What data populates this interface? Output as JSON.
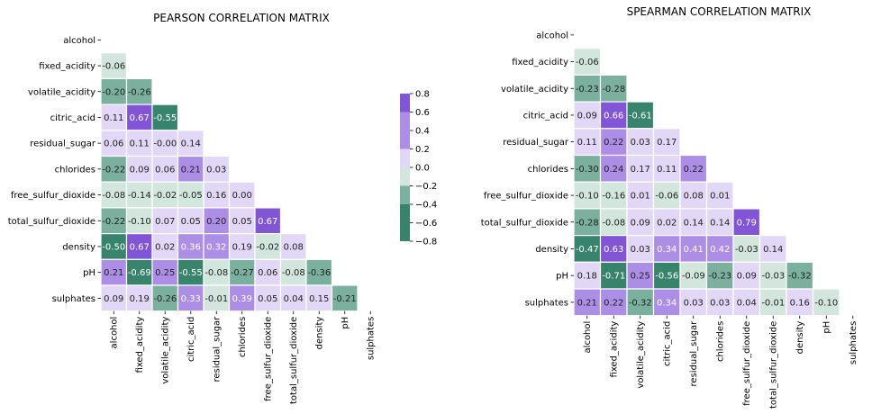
{
  "palette": {
    "neg_strong": "#38836b",
    "neg_mid": "#7ab09d",
    "neg_light": "#d2e6de",
    "pos_light": "#e2d7f6",
    "pos_mid": "#ad8ee7",
    "pos_strong": "#8155d6",
    "grid_line": "#ffffff",
    "text_dark": "#222222",
    "text_light": "#ffffff"
  },
  "colorbar": {
    "ticks": [
      "0.8",
      "0.6",
      "0.4",
      "0.2",
      "0.0",
      "−0.2",
      "−0.4",
      "−0.6",
      "−0.8"
    ],
    "range": [
      -0.8,
      0.8
    ]
  },
  "chart_data": [
    {
      "type": "heatmap",
      "title": "PEARSON CORRELATION MATRIX",
      "labels": [
        "alcohol",
        "fixed_acidity",
        "volatile_acidity",
        "citric_acid",
        "residual_sugar",
        "chlorides",
        "free_sulfur_dioxide",
        "total_sulfur_dioxide",
        "density",
        "pH",
        "sulphates"
      ],
      "values": [
        [],
        [
          "-0.06"
        ],
        [
          "-0.20",
          "-0.26"
        ],
        [
          "0.11",
          "0.67",
          "-0.55"
        ],
        [
          "0.06",
          "0.11",
          "-0.00",
          "0.14"
        ],
        [
          "-0.22",
          "0.09",
          "0.06",
          "0.21",
          "0.03"
        ],
        [
          "-0.08",
          "-0.14",
          "-0.02",
          "-0.05",
          "0.16",
          "0.00"
        ],
        [
          "-0.22",
          "-0.10",
          "0.07",
          "0.05",
          "0.20",
          "0.05",
          "0.67"
        ],
        [
          "-0.50",
          "0.67",
          "0.02",
          "0.36",
          "0.32",
          "0.19",
          "-0.02",
          "0.08"
        ],
        [
          "0.21",
          "-0.69",
          "0.25",
          "-0.55",
          "-0.08",
          "-0.27",
          "0.06",
          "-0.08",
          "-0.36"
        ],
        [
          "0.09",
          "0.19",
          "-0.26",
          "0.33",
          "-0.01",
          "0.39",
          "0.05",
          "0.04",
          "0.15",
          "-0.21"
        ]
      ],
      "vmin": -0.8,
      "vmax": 0.8,
      "mask": "upper-triangle-including-diagonal"
    },
    {
      "type": "heatmap",
      "title": "SPEARMAN CORRELATION MATRIX",
      "labels": [
        "alcohol",
        "fixed_acidity",
        "volatile_acidity",
        "citric_acid",
        "residual_sugar",
        "chlorides",
        "free_sulfur_dioxide",
        "total_sulfur_dioxide",
        "density",
        "pH",
        "sulphates"
      ],
      "values": [
        [],
        [
          "-0.06"
        ],
        [
          "-0.23",
          "-0.28"
        ],
        [
          "0.09",
          "0.66",
          "-0.61"
        ],
        [
          "0.11",
          "0.22",
          "0.03",
          "0.17"
        ],
        [
          "-0.30",
          "0.24",
          "0.17",
          "0.11",
          "0.22"
        ],
        [
          "-0.10",
          "-0.16",
          "0.01",
          "-0.06",
          "0.08",
          "0.01"
        ],
        [
          "-0.28",
          "-0.08",
          "0.09",
          "0.02",
          "0.14",
          "0.14",
          "0.79"
        ],
        [
          "-0.47",
          "0.63",
          "0.03",
          "0.34",
          "0.41",
          "0.42",
          "-0.03",
          "0.14"
        ],
        [
          "0.18",
          "-0.71",
          "0.25",
          "-0.56",
          "-0.09",
          "-0.23",
          "0.09",
          "-0.03",
          "-0.32"
        ],
        [
          "0.21",
          "0.22",
          "-0.32",
          "0.34",
          "0.03",
          "0.03",
          "0.04",
          "-0.01",
          "0.16",
          "-0.10"
        ]
      ],
      "vmin": -0.8,
      "vmax": 0.8,
      "mask": "upper-triangle-including-diagonal"
    }
  ]
}
